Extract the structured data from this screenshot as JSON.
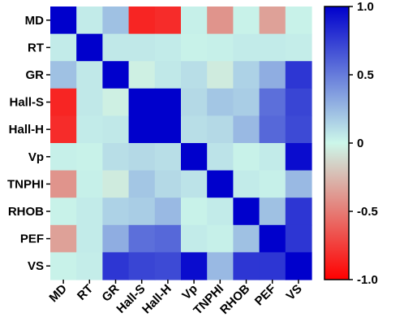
{
  "chart_data": {
    "type": "heatmap",
    "rows": [
      "MD",
      "RT",
      "GR",
      "Hall-S",
      "Hall-H",
      "Vp",
      "TNPHI",
      "RHOB",
      "PEF",
      "VS"
    ],
    "cols": [
      "MD",
      "RT",
      "GR",
      "Hall-S",
      "Hall-H",
      "Vp",
      "TNPHI",
      "RHOB",
      "PEF",
      "VS"
    ],
    "values": [
      [
        1.0,
        0.05,
        0.22,
        -0.85,
        -0.82,
        0.03,
        -0.4,
        0.02,
        -0.35,
        0.02
      ],
      [
        0.05,
        1.0,
        0.06,
        0.06,
        0.05,
        0.02,
        0.03,
        0.05,
        0.05,
        0.04
      ],
      [
        0.22,
        0.06,
        1.0,
        -0.03,
        0.06,
        0.1,
        -0.05,
        0.15,
        0.3,
        0.78
      ],
      [
        -0.85,
        0.06,
        -0.03,
        1.0,
        1.0,
        0.12,
        0.2,
        0.17,
        0.55,
        0.72
      ],
      [
        -0.82,
        0.05,
        0.06,
        1.0,
        1.0,
        0.1,
        0.12,
        0.25,
        0.58,
        0.7
      ],
      [
        0.03,
        0.02,
        0.1,
        0.12,
        0.1,
        1.0,
        0.08,
        0.02,
        0.05,
        0.95
      ],
      [
        -0.4,
        0.03,
        -0.05,
        0.2,
        0.12,
        0.08,
        1.0,
        0.05,
        0.03,
        0.25
      ],
      [
        0.02,
        0.05,
        0.15,
        0.17,
        0.25,
        0.02,
        0.05,
        1.0,
        0.22,
        0.78
      ],
      [
        -0.35,
        0.05,
        0.3,
        0.55,
        0.58,
        0.05,
        0.03,
        0.22,
        1.0,
        0.78
      ],
      [
        0.02,
        0.04,
        0.78,
        0.72,
        0.7,
        0.95,
        0.25,
        0.78,
        0.78,
        1.0
      ]
    ],
    "colorbar": {
      "range": [
        -1.0,
        1.0
      ],
      "ticks": [
        1.0,
        0.5,
        0,
        -0.5,
        -1.0
      ],
      "tick_labels": [
        "1.0",
        "0.5",
        "0",
        "-0.5",
        "-1.0"
      ],
      "colors": {
        "low": "#ff0000",
        "mid": "#ccf7ea",
        "high": "#0000cc"
      }
    }
  }
}
